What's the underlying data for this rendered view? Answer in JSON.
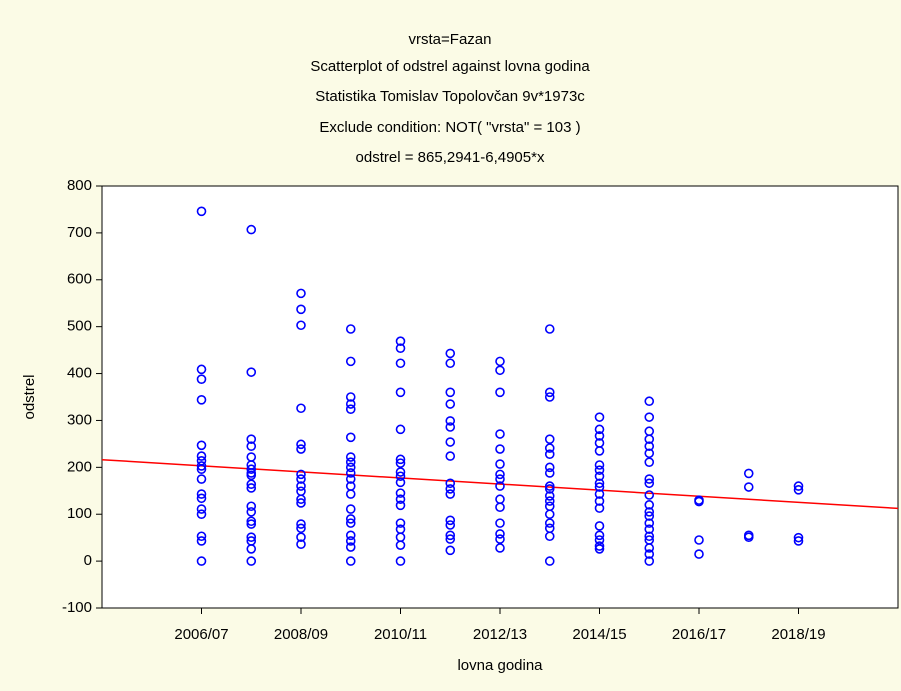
{
  "chart_data": {
    "type": "scatter",
    "title": "vrsta=Fazan",
    "subtitles": [
      "Scatterplot of odstrel against lovna godina",
      "Statistika Tomislav Topolovčan 9v*1973c",
      "Exclude condition: NOT( \"vrsta\" = 103 )"
    ],
    "annotation": "odstrel = 865,2941-6,4905*x",
    "x_label": "lovna godina",
    "y_label": "odstrel",
    "xlim": [
      100,
      116
    ],
    "xticks": [
      {
        "value": 102,
        "label": "2006/07"
      },
      {
        "value": 104,
        "label": "2008/09"
      },
      {
        "value": 106,
        "label": "2010/11"
      },
      {
        "value": 108,
        "label": "2012/13"
      },
      {
        "value": 110,
        "label": "2014/15"
      },
      {
        "value": 112,
        "label": "2016/17"
      },
      {
        "value": 114,
        "label": "2018/19"
      }
    ],
    "ylim": [
      -100,
      800
    ],
    "yticks": [
      -100,
      0,
      100,
      200,
      300,
      400,
      500,
      600,
      700,
      800
    ],
    "color": "#0000ff",
    "fit": {
      "intercept": 865.2941,
      "slope": -6.4905,
      "color": "#ff0000"
    },
    "x": [
      102,
      102,
      102,
      102,
      102,
      102,
      102,
      102,
      102,
      102,
      102,
      102,
      102,
      102,
      102,
      102,
      102,
      103,
      103,
      103,
      103,
      103,
      103,
      103,
      103,
      103,
      103,
      103,
      103,
      103,
      103,
      103,
      103,
      103,
      103,
      103,
      104,
      104,
      104,
      104,
      104,
      104,
      104,
      104,
      104,
      104,
      104,
      104,
      104,
      104,
      104,
      104,
      105,
      105,
      105,
      105,
      105,
      105,
      105,
      105,
      105,
      105,
      105,
      105,
      105,
      105,
      105,
      105,
      105,
      105,
      105,
      105,
      106,
      106,
      106,
      106,
      106,
      106,
      106,
      106,
      106,
      106,
      106,
      106,
      106,
      106,
      106,
      106,
      106,
      106,
      107,
      107,
      107,
      107,
      107,
      107,
      107,
      107,
      107,
      107,
      107,
      107,
      107,
      107,
      107,
      107,
      108,
      108,
      108,
      108,
      108,
      108,
      108,
      108,
      108,
      108,
      108,
      108,
      108,
      108,
      108,
      109,
      109,
      109,
      109,
      109,
      109,
      109,
      109,
      109,
      109,
      109,
      109,
      109,
      109,
      109,
      109,
      109,
      109,
      110,
      110,
      110,
      110,
      110,
      110,
      110,
      110,
      110,
      110,
      110,
      110,
      110,
      110,
      110,
      110,
      110,
      110,
      111,
      111,
      111,
      111,
      111,
      111,
      111,
      111,
      111,
      111,
      111,
      111,
      111,
      111,
      111,
      111,
      111,
      111,
      111,
      111,
      112,
      112,
      112,
      112,
      113,
      113,
      113,
      113,
      114,
      114,
      114,
      114
    ],
    "values": [
      746,
      409,
      388,
      344,
      247,
      224,
      214,
      203,
      196,
      175,
      143,
      134,
      111,
      100,
      53,
      43,
      0,
      707,
      403,
      260,
      245,
      222,
      205,
      196,
      188,
      183,
      164,
      156,
      117,
      105,
      85,
      79,
      51,
      43,
      26,
      0,
      571,
      537,
      503,
      326,
      249,
      239,
      185,
      175,
      160,
      149,
      132,
      124,
      79,
      70,
      51,
      36,
      495,
      426,
      350,
      335,
      324,
      264,
      222,
      211,
      200,
      188,
      175,
      160,
      143,
      111,
      90,
      81,
      55,
      43,
      30,
      0,
      469,
      454,
      422,
      360,
      281,
      217,
      209,
      190,
      181,
      168,
      145,
      132,
      119,
      81,
      68,
      51,
      34,
      0,
      443,
      422,
      360,
      335,
      299,
      286,
      254,
      224,
      166,
      154,
      143,
      87,
      77,
      55,
      47,
      23,
      426,
      407,
      360,
      271,
      239,
      207,
      185,
      175,
      160,
      132,
      115,
      81,
      58,
      47,
      28,
      495,
      360,
      350,
      260,
      241,
      228,
      200,
      188,
      160,
      154,
      139,
      128,
      117,
      100,
      81,
      70,
      53,
      0,
      307,
      281,
      267,
      252,
      235,
      205,
      194,
      181,
      166,
      158,
      143,
      128,
      113,
      75,
      55,
      45,
      32,
      26,
      341,
      307,
      277,
      260,
      245,
      230,
      211,
      175,
      166,
      141,
      120,
      105,
      96,
      81,
      68,
      53,
      45,
      28,
      15,
      0,
      130,
      127,
      45,
      15,
      187,
      158,
      55,
      51,
      160,
      152,
      50,
      43
    ]
  }
}
